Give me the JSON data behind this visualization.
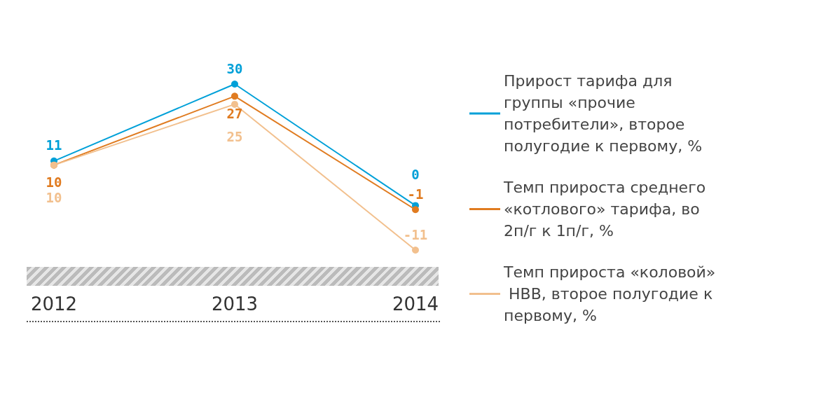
{
  "chart_data": {
    "type": "line",
    "categories": [
      "2012",
      "2013",
      "2014"
    ],
    "series": [
      {
        "name": "Прирост тарифа для группы «прочие потребители», второе полугодие к первому, %",
        "color": "#00a0d8",
        "values": [
          11,
          30,
          0
        ]
      },
      {
        "name": "Темп прироста среднего «котлового» тарифа, во 2п/г к 1п/г, %",
        "color": "#e07b20",
        "values": [
          10,
          27,
          -1
        ]
      },
      {
        "name": "Темп прироста «коловой» НВВ, второе полугодие к первому, %",
        "color": "#f2c08e",
        "values": [
          10,
          25,
          -11
        ]
      }
    ],
    "data_labels": true,
    "marker": "circle",
    "legend": "right",
    "grid": false
  }
}
